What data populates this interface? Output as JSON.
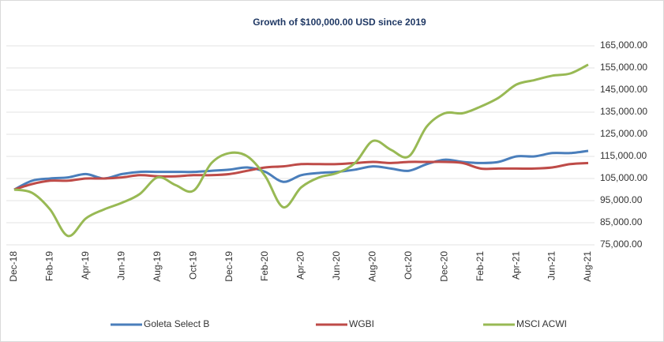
{
  "chart_data": {
    "type": "line",
    "title": "Growth of $100,000.00 USD since 2019",
    "categories": [
      "Dec-18",
      null,
      "Feb-19",
      null,
      "Apr-19",
      null,
      "Jun-19",
      null,
      "Aug-19",
      null,
      "Oct-19",
      null,
      "Dec-19",
      null,
      "Feb-20",
      null,
      "Apr-20",
      null,
      "Jun-20",
      null,
      "Aug-20",
      null,
      "Oct-20",
      null,
      "Dec-20",
      null,
      "Feb-21",
      null,
      "Apr-21",
      null,
      "Jun-21",
      null,
      "Aug-21"
    ],
    "series": [
      {
        "name": "Goleta Select B",
        "color": "#4a7ebb",
        "values": [
          100000,
          104000,
          105000,
          105500,
          107000,
          105000,
          107000,
          108000,
          108000,
          108000,
          108000,
          108500,
          109000,
          110000,
          108000,
          103500,
          106500,
          107500,
          108000,
          109000,
          110500,
          109500,
          108500,
          111500,
          113500,
          112500,
          112000,
          112500,
          115000,
          115000,
          116500,
          116500,
          117500
        ]
      },
      {
        "name": "WGBI",
        "color": "#be4b48",
        "values": [
          100000,
          102500,
          104000,
          104000,
          105000,
          105000,
          105500,
          106500,
          106000,
          106000,
          106500,
          106500,
          107000,
          108500,
          110000,
          110500,
          111500,
          111500,
          111500,
          112000,
          112500,
          112000,
          112500,
          112500,
          112500,
          112000,
          109500,
          109500,
          109500,
          109500,
          110000,
          111500,
          112000
        ]
      },
      {
        "name": "MSCI ACWI",
        "color": "#98b954",
        "values": [
          100000,
          98500,
          91000,
          79000,
          87000,
          91000,
          94000,
          98000,
          105500,
          102000,
          99500,
          112000,
          116500,
          115000,
          106000,
          92000,
          101000,
          105500,
          107500,
          112000,
          122000,
          118000,
          115000,
          128500,
          134500,
          134500,
          137500,
          141500,
          147500,
          149500,
          151500,
          152500,
          156500
        ]
      }
    ],
    "ylim": [
      75000,
      165000
    ],
    "yticks": [
      {
        "value": 75000,
        "label": "75,000.00"
      },
      {
        "value": 85000,
        "label": "85,000.00"
      },
      {
        "value": 95000,
        "label": "95,000.00"
      },
      {
        "value": 105000,
        "label": "105,000.00"
      },
      {
        "value": 115000,
        "label": "115,000.00"
      },
      {
        "value": 125000,
        "label": "125,000.00"
      },
      {
        "value": 135000,
        "label": "135,000.00"
      },
      {
        "value": 145000,
        "label": "145,000.00"
      },
      {
        "value": 155000,
        "label": "155,000.00"
      },
      {
        "value": 165000,
        "label": "165,000.00"
      }
    ],
    "grid": true,
    "legend": "bottom"
  }
}
